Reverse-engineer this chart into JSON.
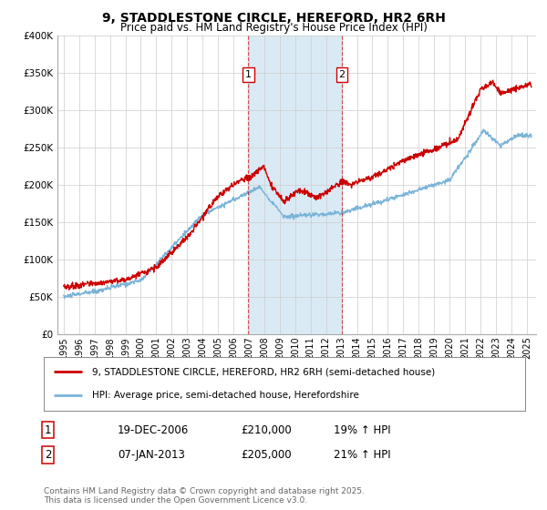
{
  "title": "9, STADDLESTONE CIRCLE, HEREFORD, HR2 6RH",
  "subtitle": "Price paid vs. HM Land Registry's House Price Index (HPI)",
  "ylim": [
    0,
    400000
  ],
  "yticks": [
    0,
    50000,
    100000,
    150000,
    200000,
    250000,
    300000,
    350000,
    400000
  ],
  "ytick_labels": [
    "£0",
    "£50K",
    "£100K",
    "£150K",
    "£200K",
    "£250K",
    "£300K",
    "£350K",
    "£400K"
  ],
  "xlim_start": 1994.6,
  "xlim_end": 2025.6,
  "xticks": [
    1995,
    1996,
    1997,
    1998,
    1999,
    2000,
    2001,
    2002,
    2003,
    2004,
    2005,
    2006,
    2007,
    2008,
    2009,
    2010,
    2011,
    2012,
    2013,
    2014,
    2015,
    2016,
    2017,
    2018,
    2019,
    2020,
    2021,
    2022,
    2023,
    2024,
    2025
  ],
  "sale1_x": 2006.96,
  "sale1_y": 210000,
  "sale1_label": "1",
  "sale1_date": "19-DEC-2006",
  "sale1_price": "£210,000",
  "sale1_hpi": "19% ↑ HPI",
  "sale2_x": 2013.02,
  "sale2_y": 205000,
  "sale2_label": "2",
  "sale2_date": "07-JAN-2013",
  "sale2_price": "£205,000",
  "sale2_hpi": "21% ↑ HPI",
  "hpi_line_color": "#7ab4d8",
  "price_line_color": "#cc0000",
  "sale_marker_color": "#cc0000",
  "shaded_region_color": "#daeaf5",
  "legend_line1": "9, STADDLESTONE CIRCLE, HEREFORD, HR2 6RH (semi-detached house)",
  "legend_line2": "HPI: Average price, semi-detached house, Herefordshire",
  "footer": "Contains HM Land Registry data © Crown copyright and database right 2025.\nThis data is licensed under the Open Government Licence v3.0.",
  "background_color": "#ffffff",
  "grid_color": "#cccccc"
}
